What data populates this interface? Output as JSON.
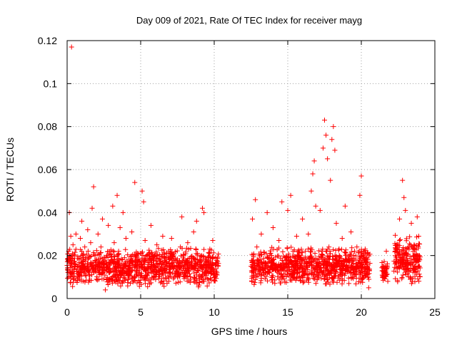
{
  "chart_data": {
    "type": "scatter",
    "title": "Day 009 of 2021, Rate Of TEC Index for receiver mayg",
    "xlabel": "GPS time / hours",
    "ylabel": "ROTI / TECUs",
    "xlim": [
      0,
      25
    ],
    "ylim": [
      0,
      0.12
    ],
    "xticks": [
      0,
      5,
      10,
      15,
      20,
      25
    ],
    "yticks": [
      0,
      0.02,
      0.04,
      0.06,
      0.08,
      0.1,
      0.12
    ],
    "ytick_labels": [
      "0",
      "0.02",
      "0.04",
      "0.06",
      "0.08",
      "0.1",
      "0.12"
    ],
    "grid": true,
    "marker": "+",
    "colors": {
      "points": "#ff0000",
      "grid": "#a0a0a0",
      "frame": "#000000"
    },
    "points": [
      [
        0.05,
        0.013
      ],
      [
        0.1,
        0.022
      ],
      [
        0.15,
        0.04
      ],
      [
        0.2,
        0.016
      ],
      [
        0.25,
        0.029
      ],
      [
        0.3,
        0.117
      ],
      [
        0.35,
        0.012
      ],
      [
        0.4,
        0.025
      ],
      [
        0.5,
        0.02
      ],
      [
        0.6,
        0.03
      ],
      [
        0.7,
        0.015
      ],
      [
        0.8,
        0.011
      ],
      [
        0.9,
        0.028
      ],
      [
        1.0,
        0.036
      ],
      [
        1.1,
        0.018
      ],
      [
        1.2,
        0.024
      ],
      [
        1.3,
        0.014
      ],
      [
        1.4,
        0.032
      ],
      [
        1.5,
        0.012
      ],
      [
        1.6,
        0.026
      ],
      [
        1.7,
        0.042
      ],
      [
        1.8,
        0.052
      ],
      [
        1.9,
        0.02
      ],
      [
        2.0,
        0.009
      ],
      [
        2.1,
        0.03
      ],
      [
        2.2,
        0.016
      ],
      [
        2.3,
        0.024
      ],
      [
        2.4,
        0.037
      ],
      [
        2.5,
        0.013
      ],
      [
        2.6,
        0.004
      ],
      [
        2.7,
        0.02
      ],
      [
        2.8,
        0.034
      ],
      [
        2.9,
        0.012
      ],
      [
        3.0,
        0.018
      ],
      [
        3.1,
        0.043
      ],
      [
        3.2,
        0.026
      ],
      [
        3.3,
        0.015
      ],
      [
        3.4,
        0.048
      ],
      [
        3.5,
        0.022
      ],
      [
        3.6,
        0.033
      ],
      [
        3.7,
        0.011
      ],
      [
        3.8,
        0.04
      ],
      [
        3.9,
        0.019
      ],
      [
        4.0,
        0.028
      ],
      [
        4.2,
        0.014
      ],
      [
        4.4,
        0.031
      ],
      [
        4.6,
        0.054
      ],
      [
        4.8,
        0.021
      ],
      [
        5.0,
        0.016
      ],
      [
        5.1,
        0.05
      ],
      [
        5.2,
        0.045
      ],
      [
        5.3,
        0.027
      ],
      [
        5.5,
        0.012
      ],
      [
        5.7,
        0.034
      ],
      [
        5.9,
        0.018
      ],
      [
        6.1,
        0.025
      ],
      [
        6.3,
        0.013
      ],
      [
        6.5,
        0.029
      ],
      [
        6.7,
        0.017
      ],
      [
        6.9,
        0.022
      ],
      [
        7.1,
        0.028
      ],
      [
        7.3,
        0.015
      ],
      [
        7.5,
        0.01
      ],
      [
        7.7,
        0.024
      ],
      [
        7.8,
        0.038
      ],
      [
        7.9,
        0.02
      ],
      [
        8.0,
        0.012
      ],
      [
        8.2,
        0.026
      ],
      [
        8.4,
        0.009
      ],
      [
        8.6,
        0.031
      ],
      [
        8.8,
        0.036
      ],
      [
        9.0,
        0.018
      ],
      [
        9.2,
        0.042
      ],
      [
        9.3,
        0.04
      ],
      [
        9.5,
        0.014
      ],
      [
        9.7,
        0.023
      ],
      [
        9.9,
        0.027
      ],
      [
        10.1,
        0.019
      ],
      [
        10.2,
        0.011
      ],
      [
        12.5,
        0.015
      ],
      [
        12.6,
        0.037
      ],
      [
        12.7,
        0.012
      ],
      [
        12.8,
        0.046
      ],
      [
        12.9,
        0.024
      ],
      [
        13.0,
        0.018
      ],
      [
        13.2,
        0.03
      ],
      [
        13.4,
        0.011
      ],
      [
        13.6,
        0.04
      ],
      [
        13.8,
        0.021
      ],
      [
        14.0,
        0.033
      ],
      [
        14.2,
        0.013
      ],
      [
        14.4,
        0.027
      ],
      [
        14.6,
        0.045
      ],
      [
        14.8,
        0.019
      ],
      [
        15.0,
        0.041
      ],
      [
        15.2,
        0.048
      ],
      [
        15.4,
        0.016
      ],
      [
        15.6,
        0.029
      ],
      [
        15.8,
        0.012
      ],
      [
        16.0,
        0.037
      ],
      [
        16.2,
        0.022
      ],
      [
        16.4,
        0.03
      ],
      [
        16.6,
        0.05
      ],
      [
        16.7,
        0.058
      ],
      [
        16.8,
        0.064
      ],
      [
        16.9,
        0.043
      ],
      [
        17.0,
        0.018
      ],
      [
        17.2,
        0.041
      ],
      [
        17.4,
        0.07
      ],
      [
        17.5,
        0.083
      ],
      [
        17.6,
        0.076
      ],
      [
        17.7,
        0.065
      ],
      [
        17.8,
        0.024
      ],
      [
        17.9,
        0.055
      ],
      [
        18.0,
        0.074
      ],
      [
        18.1,
        0.08
      ],
      [
        18.2,
        0.069
      ],
      [
        18.3,
        0.035
      ],
      [
        18.5,
        0.02
      ],
      [
        18.7,
        0.028
      ],
      [
        18.9,
        0.043
      ],
      [
        19.1,
        0.014
      ],
      [
        19.3,
        0.031
      ],
      [
        19.5,
        0.018
      ],
      [
        19.7,
        0.024
      ],
      [
        19.9,
        0.048
      ],
      [
        20.0,
        0.057
      ],
      [
        20.2,
        0.022
      ],
      [
        20.4,
        0.012
      ],
      [
        20.5,
        0.005
      ],
      [
        21.5,
        0.014
      ],
      [
        21.7,
        0.022
      ],
      [
        21.8,
        0.008
      ],
      [
        22.4,
        0.016
      ],
      [
        22.6,
        0.037
      ],
      [
        22.8,
        0.055
      ],
      [
        22.9,
        0.047
      ],
      [
        23.0,
        0.041
      ],
      [
        23.2,
        0.024
      ],
      [
        23.4,
        0.035
      ],
      [
        23.6,
        0.018
      ],
      [
        23.8,
        0.038
      ],
      [
        23.9,
        0.029
      ]
    ],
    "bands": [
      {
        "x_range": [
          0,
          10.3
        ],
        "y_range": [
          0.005,
          0.024
        ],
        "n": 1100
      },
      {
        "x_range": [
          12.5,
          20.6
        ],
        "y_range": [
          0.006,
          0.024
        ],
        "n": 900
      },
      {
        "x_range": [
          21.4,
          21.8
        ],
        "y_range": [
          0.008,
          0.018
        ],
        "n": 40
      },
      {
        "x_range": [
          22.2,
          24.0
        ],
        "y_range": [
          0.006,
          0.03
        ],
        "n": 220
      }
    ]
  }
}
